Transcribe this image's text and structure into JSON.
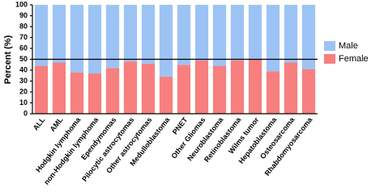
{
  "chart_data": {
    "type": "stacked_bar",
    "ylabel": "Percent (%)",
    "categories": [
      "ALL",
      "AML",
      "Hodgkin lymphoma",
      "non-Hodgkin lymphoma",
      "Ependymomas",
      "Pilocytic astrocytomas",
      "Other astrocytomas",
      "Medulloblastoma",
      "PNET",
      "Other Gliomas",
      "Neuroblastoma",
      "Retinoblastoma",
      "Wilms tumor",
      "Hepatoblastoma",
      "Osteosarcoma",
      "Rhabdomyosarcoma"
    ],
    "series": [
      {
        "name": "Female",
        "color": "#f77f7f",
        "values": [
          44,
          47,
          38,
          37,
          42,
          48,
          46,
          34,
          45,
          49,
          44,
          49,
          50,
          39,
          47,
          41
        ]
      },
      {
        "name": "Male",
        "color": "#9dc3f5",
        "values": [
          56,
          53,
          62,
          63,
          58,
          52,
          54,
          66,
          55,
          51,
          56,
          51,
          50,
          61,
          53,
          59
        ]
      }
    ],
    "ylim": [
      0,
      100
    ],
    "yticks": [
      0,
      10,
      20,
      30,
      40,
      50,
      60,
      70,
      80,
      90,
      100
    ],
    "reference_line": 50,
    "legend": "right"
  }
}
